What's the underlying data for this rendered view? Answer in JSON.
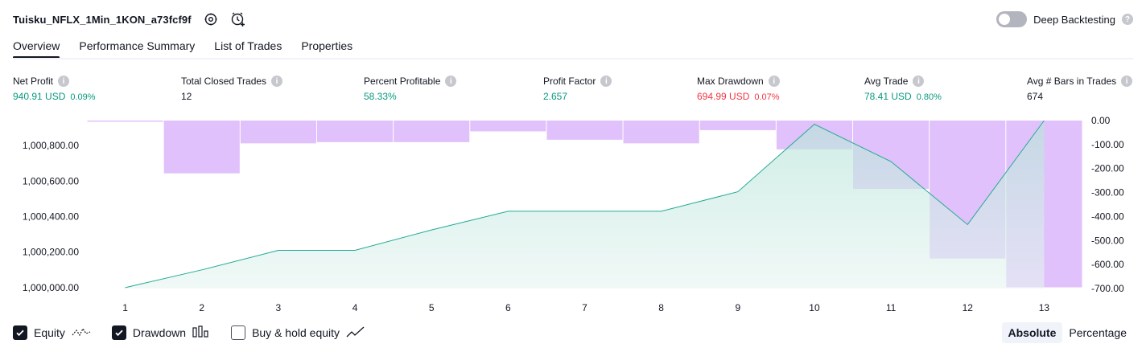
{
  "header": {
    "strategy_name": "Tuisku_NFLX_1Min_1KON_a73fcf9f",
    "deep_backtesting_label": "Deep Backtesting",
    "deep_backtesting_enabled": false
  },
  "tabs": [
    {
      "label": "Overview",
      "active": true
    },
    {
      "label": "Performance Summary",
      "active": false
    },
    {
      "label": "List of Trades",
      "active": false
    },
    {
      "label": "Properties",
      "active": false
    }
  ],
  "stats": [
    {
      "label": "Net Profit",
      "value": "940.91 USD",
      "pct": "0.09%",
      "color": "#089981"
    },
    {
      "label": "Total Closed Trades",
      "value": "12",
      "pct": "",
      "color": "#131722"
    },
    {
      "label": "Percent Profitable",
      "value": "58.33%",
      "pct": "",
      "color": "#089981"
    },
    {
      "label": "Profit Factor",
      "value": "2.657",
      "pct": "",
      "color": "#089981"
    },
    {
      "label": "Max Drawdown",
      "value": "694.99 USD",
      "pct": "0.07%",
      "color": "#f23645"
    },
    {
      "label": "Avg Trade",
      "value": "78.41 USD",
      "pct": "0.80%",
      "color": "#089981"
    },
    {
      "label": "Avg # Bars in Trades",
      "value": "674",
      "pct": "",
      "color": "#131722"
    }
  ],
  "chart_data": {
    "type": "line",
    "categories": [
      "1",
      "2",
      "3",
      "4",
      "5",
      "6",
      "7",
      "8",
      "9",
      "10",
      "11",
      "12",
      "13"
    ],
    "series": [
      {
        "name": "Equity",
        "axis": "left",
        "type": "area",
        "values": [
          1000000.0,
          1000100.0,
          1000210.0,
          1000210.0,
          1000325.0,
          1000430.0,
          1000430.0,
          1000430.0,
          1000540.0,
          1000920.0,
          1000710.0,
          1000355.0,
          1000940.91
        ]
      },
      {
        "name": "Drawdown",
        "axis": "right",
        "type": "bar",
        "values": [
          -5,
          -220,
          -95,
          -90,
          -90,
          -45,
          -80,
          -95,
          -40,
          -120,
          -285,
          -575,
          -695
        ]
      }
    ],
    "left_axis": {
      "ticks": [
        "1,000,000.00",
        "1,000,200.00",
        "1,000,400.00",
        "1,000,600.00",
        "1,000,800.00"
      ],
      "ylim": [
        999995,
        1000940.91
      ]
    },
    "right_axis": {
      "ticks": [
        "0.00",
        "-100.00",
        "-200.00",
        "-300.00",
        "-400.00",
        "-500.00",
        "-600.00",
        "-700.00"
      ],
      "ylim": [
        -700,
        0
      ]
    },
    "colors": {
      "equity_line": "#22ab94",
      "equity_fill": "#c8ebe4",
      "drawdown_bar": "#e1c1fb"
    }
  },
  "legend": {
    "equity": {
      "label": "Equity",
      "checked": true
    },
    "drawdown": {
      "label": "Drawdown",
      "checked": true
    },
    "buy_hold": {
      "label": "Buy & hold equity",
      "checked": false
    }
  },
  "mode": {
    "absolute_label": "Absolute",
    "percentage_label": "Percentage",
    "active": "absolute"
  }
}
